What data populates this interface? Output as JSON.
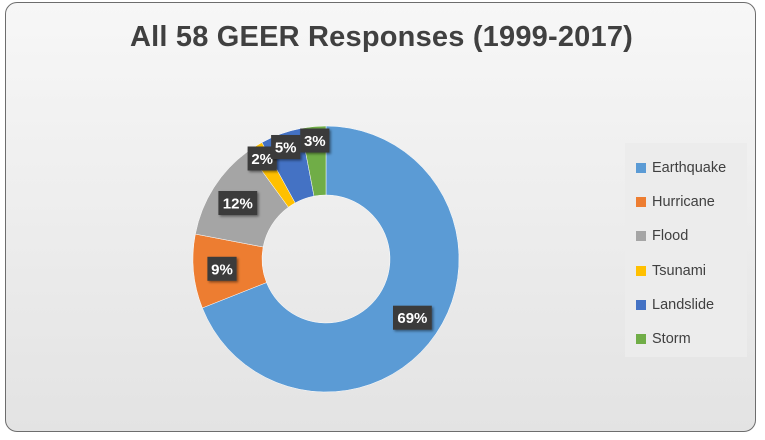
{
  "chart_data": {
    "type": "pie",
    "variant": "donut",
    "title": "All 58 GEER Responses (1999-2017)",
    "categories": [
      "Earthquake",
      "Hurricane",
      "Flood",
      "Tsunami",
      "Landslide",
      "Storm"
    ],
    "values": [
      69,
      9,
      12,
      2,
      5,
      3
    ],
    "value_unit": "%",
    "data_labels": [
      "69%",
      "9%",
      "12%",
      "2%",
      "5%",
      "3%"
    ],
    "colors": [
      "#5b9bd5",
      "#ed7d31",
      "#a5a5a5",
      "#ffc000",
      "#4472c4",
      "#70ad47"
    ],
    "legend": {
      "position": "right",
      "items": [
        {
          "label": "Earthquake",
          "color": "#5b9bd5"
        },
        {
          "label": "Hurricane",
          "color": "#ed7d31"
        },
        {
          "label": "Flood",
          "color": "#a5a5a5"
        },
        {
          "label": "Tsunami",
          "color": "#ffc000"
        },
        {
          "label": "Landslide",
          "color": "#4472c4"
        },
        {
          "label": "Storm",
          "color": "#70ad47"
        }
      ]
    }
  }
}
